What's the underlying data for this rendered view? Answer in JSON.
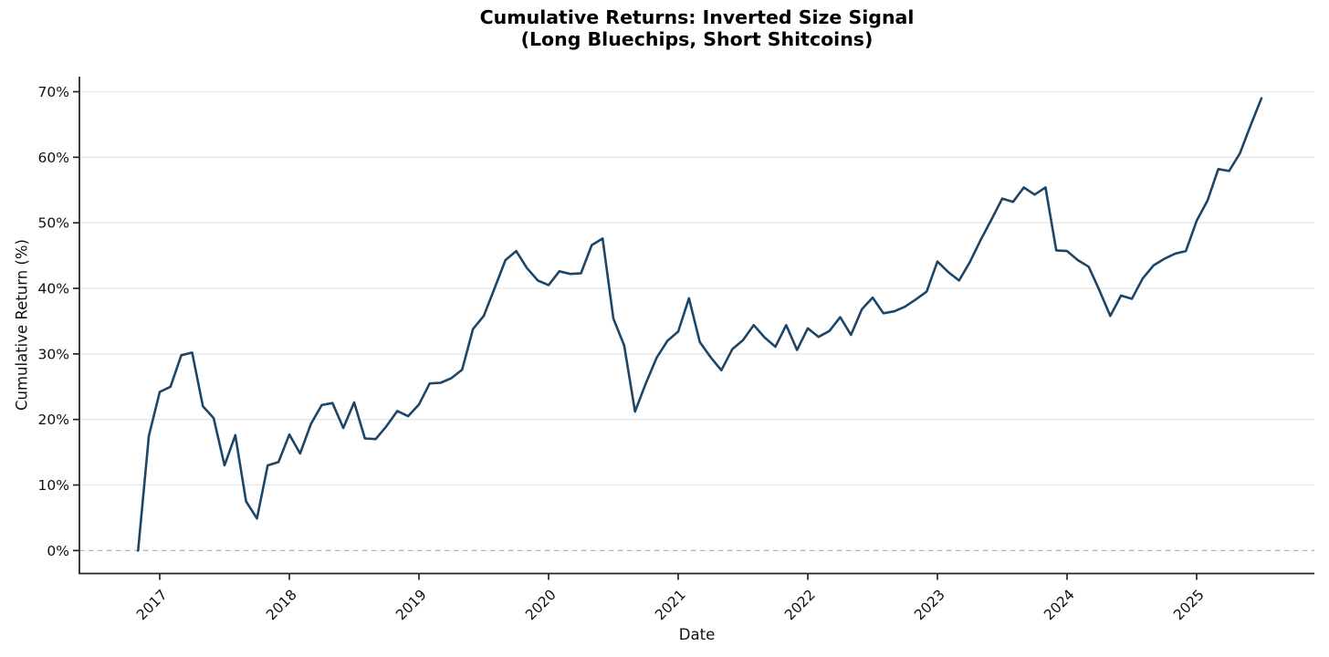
{
  "chart": {
    "title_line1": "Cumulative Returns: Inverted Size Signal",
    "title_line2": "(Long Bluechips, Short Shitcoins)",
    "xlabel": "Date",
    "ylabel": "Cumulative Return (%)"
  },
  "chart_data": {
    "type": "line",
    "title": "Cumulative Returns: Inverted Size Signal (Long Bluechips, Short Shitcoins)",
    "xlabel": "Date",
    "ylabel": "Cumulative Return (%)",
    "legend": "none",
    "grid": "horizontal-only",
    "zero_line": "dashed",
    "ylim": [
      -3.5,
      72.3
    ],
    "y_ticks": {
      "values": [
        0,
        10,
        20,
        30,
        40,
        50,
        60,
        70
      ],
      "labels": [
        "0%",
        "10%",
        "20%",
        "30%",
        "40%",
        "50%",
        "60%",
        "70%"
      ]
    },
    "x_ticks": {
      "labels": [
        "2017",
        "2018",
        "2019",
        "2020",
        "2021",
        "2022",
        "2023",
        "2024",
        "2025"
      ],
      "rotation_deg": 45
    },
    "colors": {
      "line": "#1d4568",
      "grid": "#e5e5e5",
      "zero_dash": "#b3b3b3",
      "spine": "#262626",
      "text": "#111111"
    },
    "series": [
      {
        "name": "Inverted Size Signal (Long Bluechips, Short Shitcoins)",
        "unit": "percent",
        "freq": "monthly",
        "dates": [
          "2016-11",
          "2016-12",
          "2017-01",
          "2017-02",
          "2017-03",
          "2017-04",
          "2017-05",
          "2017-06",
          "2017-07",
          "2017-08",
          "2017-09",
          "2017-10",
          "2017-11",
          "2017-12",
          "2018-01",
          "2018-02",
          "2018-03",
          "2018-04",
          "2018-05",
          "2018-06",
          "2018-07",
          "2018-08",
          "2018-09",
          "2018-10",
          "2018-11",
          "2018-12",
          "2019-01",
          "2019-02",
          "2019-03",
          "2019-04",
          "2019-05",
          "2019-06",
          "2019-07",
          "2019-08",
          "2019-09",
          "2019-10",
          "2019-11",
          "2019-12",
          "2020-01",
          "2020-02",
          "2020-03",
          "2020-04",
          "2020-05",
          "2020-06",
          "2020-07",
          "2020-08",
          "2020-09",
          "2020-10",
          "2020-11",
          "2020-12",
          "2021-01",
          "2021-02",
          "2021-03",
          "2021-04",
          "2021-05",
          "2021-06",
          "2021-07",
          "2021-08",
          "2021-09",
          "2021-10",
          "2021-11",
          "2021-12",
          "2022-01",
          "2022-02",
          "2022-03",
          "2022-04",
          "2022-05",
          "2022-06",
          "2022-07",
          "2022-08",
          "2022-09",
          "2022-10",
          "2022-11",
          "2022-12",
          "2023-01",
          "2023-02",
          "2023-03",
          "2023-04",
          "2023-05",
          "2023-06",
          "2023-07",
          "2023-08",
          "2023-09",
          "2023-10",
          "2023-11",
          "2023-12",
          "2024-01",
          "2024-02",
          "2024-03",
          "2024-04",
          "2024-05",
          "2024-06",
          "2024-07",
          "2024-08",
          "2024-09",
          "2024-10",
          "2024-11",
          "2024-12",
          "2025-01",
          "2025-02",
          "2025-03",
          "2025-04",
          "2025-05",
          "2025-06",
          "2025-07"
        ],
        "values": [
          0.0,
          17.5,
          24.2,
          25.0,
          29.8,
          30.2,
          22.0,
          20.2,
          13.0,
          17.6,
          7.5,
          4.9,
          13.0,
          13.5,
          17.7,
          14.8,
          19.3,
          22.2,
          22.5,
          18.7,
          22.6,
          17.1,
          17.0,
          19.0,
          21.3,
          20.5,
          22.3,
          25.5,
          25.6,
          26.3,
          27.6,
          33.8,
          35.8,
          40.0,
          44.3,
          45.7,
          43.1,
          41.2,
          40.5,
          42.6,
          42.2,
          42.3,
          46.6,
          47.6,
          35.4,
          31.3,
          21.2,
          25.5,
          29.4,
          32.0,
          33.4,
          38.5,
          31.8,
          29.5,
          27.5,
          30.7,
          32.1,
          34.4,
          32.5,
          31.1,
          34.4,
          30.6,
          33.9,
          32.6,
          33.5,
          35.6,
          32.9,
          36.8,
          38.6,
          36.2,
          36.5,
          37.2,
          38.3,
          39.5,
          44.1,
          42.5,
          41.2,
          44.0,
          47.4,
          50.5,
          53.7,
          53.2,
          55.4,
          54.3,
          55.4,
          45.8,
          45.7,
          44.3,
          43.3,
          39.7,
          35.8,
          38.9,
          38.4,
          41.5,
          43.5,
          44.5,
          45.3,
          45.7,
          50.3,
          53.4,
          58.2,
          57.9,
          60.6,
          64.9,
          69.0
        ]
      }
    ]
  }
}
